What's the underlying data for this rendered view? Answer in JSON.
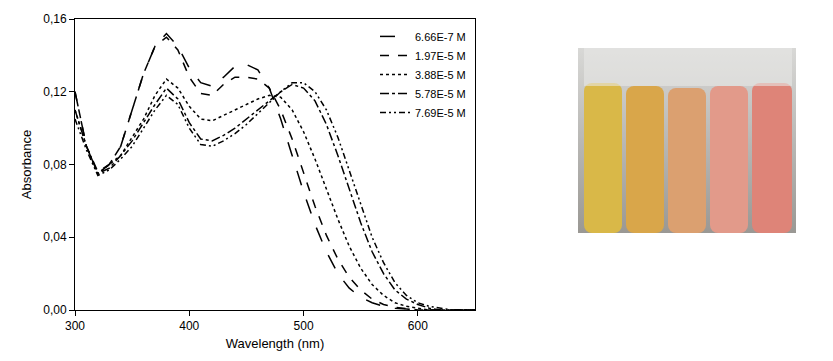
{
  "chart_data": {
    "type": "line",
    "x_label": "Wavelength (nm)",
    "y_label": "Absorbance",
    "x": [
      300,
      310,
      320,
      330,
      340,
      350,
      360,
      370,
      380,
      390,
      400,
      410,
      420,
      430,
      440,
      450,
      460,
      470,
      480,
      490,
      500,
      510,
      520,
      530,
      540,
      550,
      560,
      570,
      580,
      590,
      600,
      610,
      620,
      630,
      640,
      650
    ],
    "series": [
      {
        "name": "6.66E-7 M",
        "color": "#000000",
        "line_style": "longdash",
        "values": [
          0.12,
          0.09,
          0.075,
          0.08,
          0.09,
          0.11,
          0.13,
          0.145,
          0.152,
          0.145,
          0.133,
          0.125,
          0.123,
          0.128,
          0.134,
          0.135,
          0.132,
          0.122,
          0.105,
          0.085,
          0.065,
          0.047,
          0.032,
          0.02,
          0.012,
          0.007,
          0.004,
          0.002,
          0.001,
          0.0005,
          0,
          0,
          0,
          0,
          0,
          0
        ]
      },
      {
        "name": "1.97E-5 M",
        "color": "#000000",
        "line_style": "dash",
        "values": [
          0.12,
          0.09,
          0.076,
          0.08,
          0.09,
          0.11,
          0.13,
          0.145,
          0.15,
          0.143,
          0.128,
          0.119,
          0.118,
          0.124,
          0.128,
          0.128,
          0.127,
          0.122,
          0.11,
          0.094,
          0.075,
          0.057,
          0.041,
          0.028,
          0.018,
          0.011,
          0.006,
          0.003,
          0.0015,
          0.0008,
          0,
          0,
          0,
          0,
          0,
          0
        ]
      },
      {
        "name": "3.88E-5 M",
        "color": "#000000",
        "line_style": "dot",
        "values": [
          0.11,
          0.09,
          0.075,
          0.08,
          0.085,
          0.095,
          0.105,
          0.118,
          0.127,
          0.122,
          0.112,
          0.105,
          0.104,
          0.107,
          0.11,
          0.113,
          0.116,
          0.118,
          0.117,
          0.11,
          0.098,
          0.083,
          0.066,
          0.05,
          0.035,
          0.023,
          0.014,
          0.008,
          0.004,
          0.002,
          0.001,
          0,
          0,
          0,
          0,
          0
        ]
      },
      {
        "name": "5.78E-5 M",
        "color": "#000000",
        "line_style": "dashdot",
        "values": [
          0.11,
          0.09,
          0.075,
          0.078,
          0.085,
          0.093,
          0.103,
          0.113,
          0.122,
          0.116,
          0.103,
          0.094,
          0.093,
          0.096,
          0.1,
          0.105,
          0.11,
          0.115,
          0.12,
          0.124,
          0.122,
          0.115,
          0.102,
          0.085,
          0.066,
          0.048,
          0.032,
          0.02,
          0.011,
          0.006,
          0.003,
          0.001,
          0,
          0,
          0,
          0
        ]
      },
      {
        "name": "7.69E-5 M",
        "color": "#000000",
        "line_style": "dashdotdot",
        "values": [
          0.105,
          0.088,
          0.074,
          0.077,
          0.083,
          0.09,
          0.1,
          0.11,
          0.118,
          0.113,
          0.1,
          0.091,
          0.09,
          0.093,
          0.097,
          0.102,
          0.108,
          0.114,
          0.12,
          0.125,
          0.125,
          0.12,
          0.11,
          0.095,
          0.077,
          0.058,
          0.04,
          0.026,
          0.015,
          0.008,
          0.004,
          0.002,
          0.001,
          0,
          0,
          0
        ]
      }
    ],
    "xlim": [
      300,
      650
    ],
    "ylim": [
      0,
      0.16
    ],
    "xticks": [
      300,
      400,
      500,
      600
    ],
    "yticks": [
      {
        "value": 0,
        "label": "0,00"
      },
      {
        "value": 0.04,
        "label": "0,04"
      },
      {
        "value": 0.08,
        "label": "0,08"
      },
      {
        "value": 0.12,
        "label": "0,12"
      },
      {
        "value": 0.16,
        "label": "0,16"
      }
    ],
    "legend": "top-right"
  }
}
